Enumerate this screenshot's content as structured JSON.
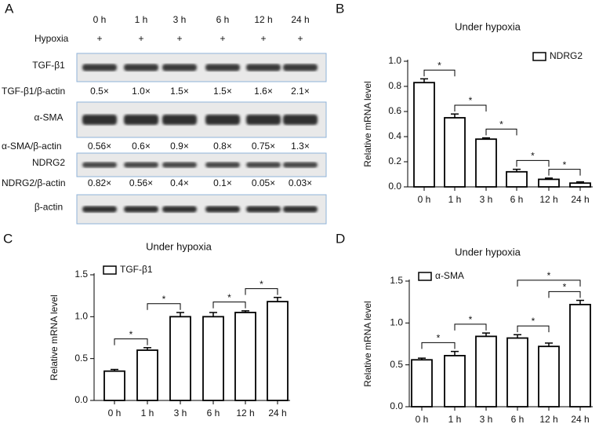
{
  "blot": {
    "panel": "A",
    "columns": [
      "0 h",
      "1 h",
      "3 h",
      "6 h",
      "12 h",
      "24 h"
    ],
    "treatment": {
      "label": "Hypoxia",
      "marks": [
        "+",
        "+",
        "+",
        "+",
        "+",
        "+"
      ]
    },
    "rows": [
      {
        "label": "TGF-β1",
        "ratio_label": "TGF-β1/β-actin",
        "ratios": [
          "0.5×",
          "1.0×",
          "1.5×",
          "1.5×",
          "1.6×",
          "2.1×"
        ]
      },
      {
        "label": "α-SMA",
        "ratio_label": "α-SMA/β-actin",
        "ratios": [
          "0.56×",
          "0.6×",
          "0.9×",
          "0.8×",
          "0.75×",
          "1.3×"
        ]
      },
      {
        "label": "NDRG2",
        "ratio_label": "NDRG2/β-actin",
        "ratios": [
          "0.82×",
          "0.56×",
          "0.4×",
          "0.1×",
          "0.05×",
          "0.03×"
        ]
      },
      {
        "label": "β-actin"
      }
    ]
  },
  "chart_data": [
    {
      "type": "bar",
      "panel": "B",
      "title": "Under hypoxia",
      "ylabel": "Relative mRNA level",
      "categories": [
        "0 h",
        "1 h",
        "3 h",
        "6 h",
        "12 h",
        "24 h"
      ],
      "series": [
        {
          "name": "NDRG2",
          "color": "#ffffff",
          "values": [
            0.83,
            0.55,
            0.38,
            0.12,
            0.06,
            0.03
          ],
          "errors": [
            0.03,
            0.03,
            0.01,
            0.02,
            0.01,
            0.01
          ]
        }
      ],
      "ylim": [
        0,
        1.0
      ],
      "yticks": [
        {
          "value": 0,
          "label": "0.0"
        },
        0.2,
        0.4,
        0.6,
        0.8,
        {
          "value": 1.0,
          "label": "1.0"
        }
      ],
      "legend": "upper right",
      "annotations": [
        {
          "text": "*",
          "from": "0 h",
          "to": "1 h"
        },
        {
          "text": "*",
          "from": "1 h",
          "to": "3 h"
        },
        {
          "text": "*",
          "from": "3 h",
          "to": "6 h"
        },
        {
          "text": "*",
          "from": "6 h",
          "to": "12 h"
        },
        {
          "text": "*",
          "from": "12 h",
          "to": "24 h"
        }
      ]
    },
    {
      "type": "bar",
      "panel": "C",
      "title": "Under hypoxia",
      "ylabel": "Relative mRNA level",
      "categories": [
        "0 h",
        "1 h",
        "3 h",
        "6 h",
        "12 h",
        "24 h"
      ],
      "series": [
        {
          "name": "TGF-β1",
          "color": "#ffffff",
          "values": [
            0.35,
            0.6,
            1.0,
            1.0,
            1.05,
            1.18
          ],
          "errors": [
            0.02,
            0.03,
            0.05,
            0.05,
            0.02,
            0.05
          ]
        }
      ],
      "ylim": [
        0,
        1.5
      ],
      "yticks": [
        {
          "value": 0,
          "label": "0.0"
        },
        0.5,
        {
          "value": 1.0,
          "label": "1.0"
        },
        1.5
      ],
      "legend": "upper left",
      "annotations": [
        {
          "text": "*",
          "from": "0 h",
          "to": "1 h"
        },
        {
          "text": "*",
          "from": "1 h",
          "to": "3 h"
        },
        {
          "text": "*",
          "from": "6 h",
          "to": "12 h"
        },
        {
          "text": "*",
          "from": "12 h",
          "to": "24 h"
        }
      ]
    },
    {
      "type": "bar",
      "panel": "D",
      "title": "Under hypoxia",
      "ylabel": "Relative mRNA level",
      "categories": [
        "0 h",
        "1 h",
        "3 h",
        "6 h",
        "12 h",
        "24 h"
      ],
      "series": [
        {
          "name": "α-SMA",
          "color": "#ffffff",
          "values": [
            0.56,
            0.61,
            0.84,
            0.82,
            0.72,
            1.22
          ],
          "errors": [
            0.02,
            0.05,
            0.04,
            0.04,
            0.04,
            0.05
          ]
        }
      ],
      "ylim": [
        0,
        1.5
      ],
      "yticks": [
        {
          "value": 0,
          "label": "0.0"
        },
        0.5,
        {
          "value": 1.0,
          "label": "1.0"
        },
        1.5
      ],
      "legend": "upper left",
      "annotations": [
        {
          "text": "*",
          "from": "0 h",
          "to": "1 h"
        },
        {
          "text": "*",
          "from": "1 h",
          "to": "3 h"
        },
        {
          "text": "*",
          "from": "6 h",
          "to": "12 h"
        },
        {
          "text": "*",
          "from": "12 h",
          "to": "24 h"
        },
        {
          "text": "*",
          "from": "6 h",
          "to": "24 h"
        }
      ]
    }
  ]
}
